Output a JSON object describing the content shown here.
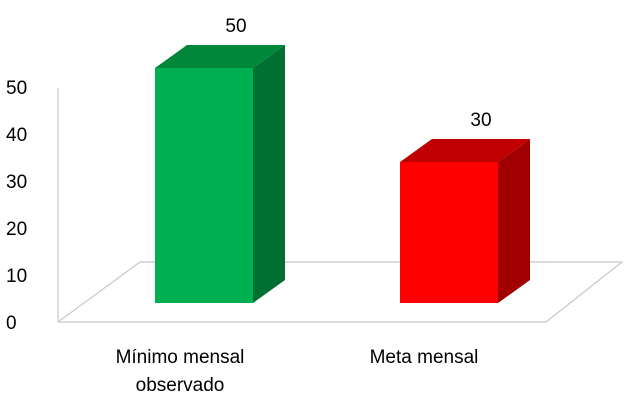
{
  "chart_data": {
    "type": "bar",
    "style": "3d-column",
    "categories": [
      [
        "Mínimo mensal",
        "observado"
      ],
      [
        "Meta mensal"
      ]
    ],
    "values": [
      50,
      30
    ],
    "data_labels": [
      "50",
      "30"
    ],
    "y_ticks": [
      "0",
      "10",
      "20",
      "30",
      "40",
      "50"
    ],
    "ylim": [
      0,
      50
    ],
    "title": "",
    "xlabel": "",
    "ylabel": "",
    "grid": false,
    "legend": "none",
    "colors": [
      {
        "front": "#00b050",
        "side": "#006f31",
        "top": "#00873a"
      },
      {
        "front": "#ff0000",
        "side": "#a00000",
        "top": "#c00000"
      }
    ],
    "floor_color": "#c8c8c8"
  }
}
